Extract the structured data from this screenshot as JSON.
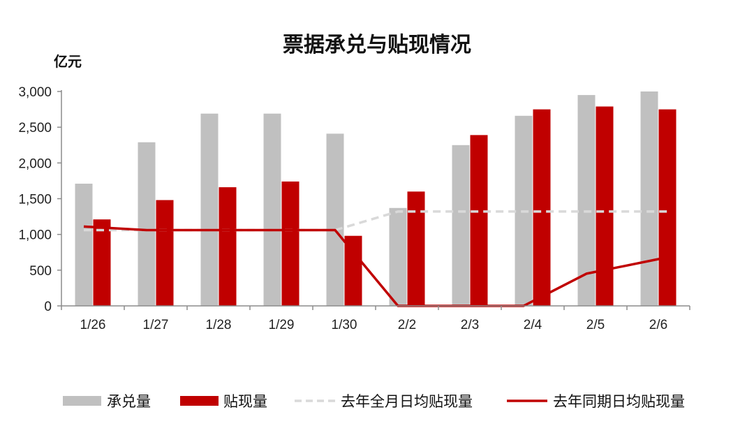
{
  "chart_data": {
    "type": "bar",
    "title": "票据承兑与贴现情况",
    "unit_label": "亿元",
    "categories": [
      "1/26",
      "1/27",
      "1/28",
      "1/29",
      "1/30",
      "2/2",
      "2/3",
      "2/4",
      "2/5",
      "2/6"
    ],
    "ylim": [
      0,
      3000
    ],
    "yticks": [
      0,
      500,
      1000,
      1500,
      2000,
      2500,
      3000
    ],
    "ytick_labels": [
      "0",
      "500",
      "1,000",
      "1,500",
      "2,000",
      "2,500",
      "3,000"
    ],
    "grid": false,
    "legend_position": "bottom",
    "series": [
      {
        "name": "承兑量",
        "kind": "bar",
        "color": "#c0c0c0",
        "values": [
          1710,
          2290,
          2690,
          2690,
          2410,
          1370,
          2250,
          2660,
          2950,
          3000
        ]
      },
      {
        "name": "贴现量",
        "kind": "bar",
        "color": "#c00000",
        "values": [
          1210,
          1480,
          1660,
          1740,
          980,
          1600,
          2390,
          2750,
          2790,
          2750
        ]
      },
      {
        "name": "去年全月日均贴现量",
        "kind": "line",
        "style": "dashed",
        "color": "#d9d9d9",
        "values": [
          1060,
          1060,
          1060,
          1060,
          1060,
          1320,
          1320,
          1320,
          1320,
          1320
        ]
      },
      {
        "name": "去年同期日均贴现量",
        "kind": "line",
        "style": "solid",
        "color": "#c00000",
        "values": [
          1110,
          1060,
          1060,
          1060,
          1060,
          0,
          0,
          0,
          450,
          680
        ]
      }
    ]
  }
}
